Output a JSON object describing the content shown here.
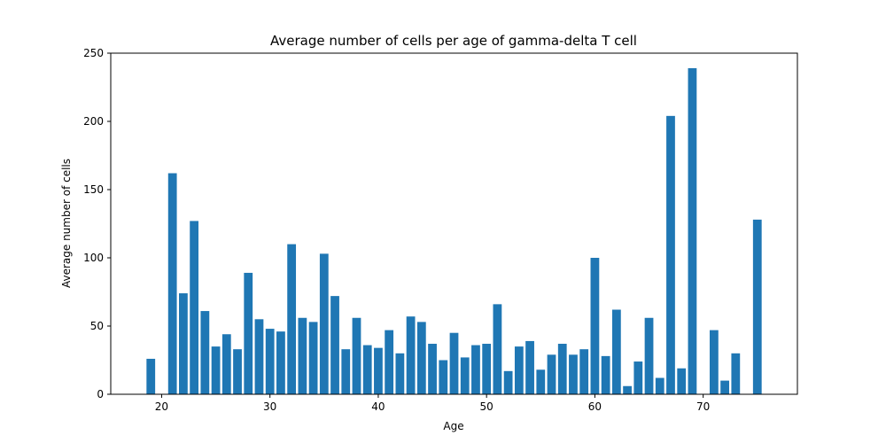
{
  "chart_data": {
    "type": "bar",
    "title": "Average number of cells per age of gamma-delta T cell",
    "xlabel": "Age",
    "ylabel": "Average number of cells",
    "xlim": [
      15.3,
      78.7
    ],
    "ylim": [
      0,
      250
    ],
    "xticks": [
      20,
      30,
      40,
      50,
      60,
      70
    ],
    "yticks": [
      0,
      50,
      100,
      150,
      200,
      250
    ],
    "grid": false,
    "bar_color": "#1f77b4",
    "bar_width": 0.8,
    "x": [
      19,
      21,
      22,
      23,
      24,
      25,
      26,
      27,
      28,
      29,
      30,
      31,
      32,
      33,
      34,
      35,
      36,
      37,
      38,
      39,
      40,
      41,
      42,
      43,
      44,
      45,
      46,
      47,
      48,
      49,
      50,
      51,
      52,
      53,
      54,
      55,
      56,
      57,
      58,
      59,
      60,
      61,
      62,
      63,
      64,
      65,
      66,
      67,
      68,
      69,
      71,
      72,
      73,
      75
    ],
    "values": [
      26,
      162,
      74,
      127,
      61,
      35,
      44,
      33,
      89,
      55,
      48,
      46,
      110,
      56,
      53,
      103,
      72,
      33,
      56,
      36,
      34,
      47,
      30,
      57,
      53,
      37,
      25,
      45,
      27,
      36,
      37,
      66,
      17,
      35,
      39,
      18,
      29,
      37,
      29,
      33,
      100,
      28,
      62,
      6,
      24,
      56,
      12,
      204,
      19,
      239,
      47,
      10,
      30,
      128
    ]
  }
}
